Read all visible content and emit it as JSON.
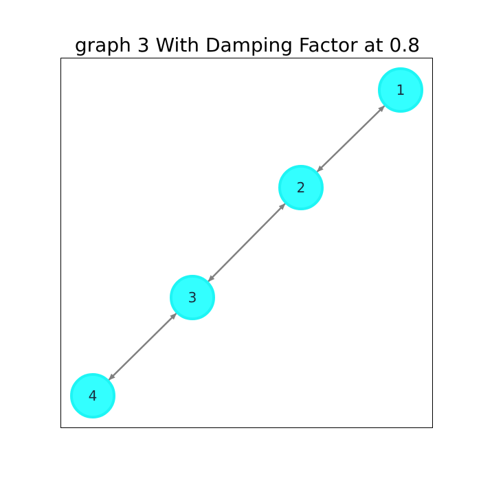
{
  "title": "graph 3 With Damping Factor at 0.8",
  "colors": {
    "node_fill": "#33ffff",
    "node_stroke": "#1ef5f5",
    "edge": "#808080",
    "label": "#1a2b3c"
  },
  "nodes": [
    {
      "id": "1",
      "label": "1"
    },
    {
      "id": "2",
      "label": "2"
    },
    {
      "id": "3",
      "label": "3"
    },
    {
      "id": "4",
      "label": "4"
    }
  ],
  "edges": [
    {
      "from": "1",
      "to": "2",
      "direction": "both"
    },
    {
      "from": "2",
      "to": "3",
      "direction": "both"
    },
    {
      "from": "3",
      "to": "4",
      "direction": "both"
    }
  ]
}
